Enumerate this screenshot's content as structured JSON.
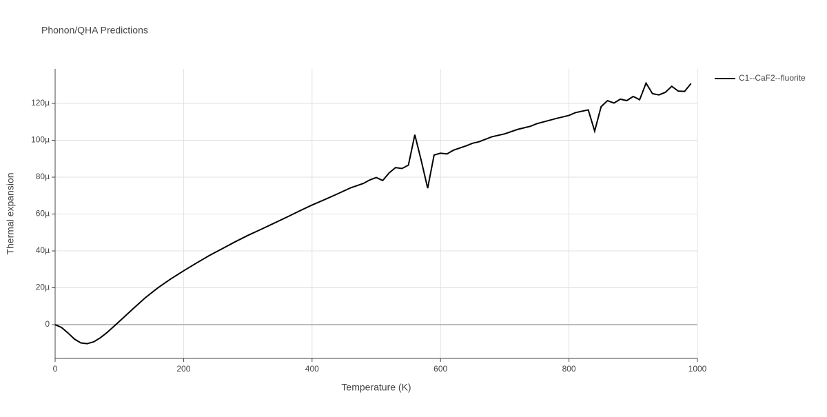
{
  "chart_data": {
    "type": "line",
    "title": "Phonon/QHA Predictions",
    "xlabel": "Temperature (K)",
    "ylabel": "Thermal expansion",
    "x": [
      0,
      10,
      20,
      30,
      40,
      50,
      60,
      70,
      80,
      90,
      100,
      120,
      140,
      160,
      180,
      200,
      220,
      240,
      260,
      280,
      300,
      320,
      340,
      360,
      380,
      400,
      420,
      440,
      460,
      480,
      490,
      500,
      510,
      520,
      530,
      540,
      550,
      560,
      570,
      580,
      590,
      600,
      610,
      620,
      640,
      650,
      660,
      680,
      700,
      720,
      740,
      750,
      780,
      800,
      810,
      830,
      840,
      850,
      860,
      870,
      880,
      890,
      900,
      910,
      920,
      930,
      940,
      950,
      960,
      970,
      980,
      990
    ],
    "series": [
      {
        "name": "C1--CaF2--fluorite",
        "color": "#000000",
        "values": [
          0,
          -1.5e-06,
          -4.5e-06,
          -7.8e-06,
          -9.9e-06,
          -1.03e-05,
          -9.3e-06,
          -7.2e-06,
          -4.5e-06,
          -1.4e-06,
          1.8e-06,
          8.2e-06,
          1.45e-05,
          2e-05,
          2.48e-05,
          2.92e-05,
          3.34e-05,
          3.75e-05,
          4.12e-05,
          4.49e-05,
          4.84e-05,
          5.16e-05,
          5.49e-05,
          5.82e-05,
          6.16e-05,
          6.49e-05,
          6.79e-05,
          7.1e-05,
          7.42e-05,
          7.66e-05,
          7.85e-05,
          7.98e-05,
          7.82e-05,
          8.23e-05,
          8.52e-05,
          8.47e-05,
          8.65e-05,
          0.000103,
          8.9e-05,
          7.4e-05,
          9.2e-05,
          9.3e-05,
          9.26e-05,
          9.46e-05,
          9.7e-05,
          9.84e-05,
          9.92e-05,
          0.0001019,
          0.0001035,
          0.0001059,
          0.0001076,
          0.000109,
          0.0001118,
          0.0001135,
          0.000115,
          0.0001165,
          0.000105,
          0.0001182,
          0.0001215,
          0.0001202,
          0.0001223,
          0.0001215,
          0.0001238,
          0.000122,
          0.000131,
          0.0001253,
          0.0001246,
          0.000126,
          0.0001293,
          0.0001267,
          0.0001265,
          0.0001308
        ]
      }
    ],
    "xlim": [
      0,
      1000
    ],
    "xticks": [
      0,
      200,
      400,
      600,
      800,
      1000
    ],
    "ylim": [
      -1.83e-05,
      0.0001387
    ],
    "yticks": [
      {
        "value": 0,
        "label": "0"
      },
      {
        "value": 2e-05,
        "label": "20µ"
      },
      {
        "value": 4e-05,
        "label": "40µ"
      },
      {
        "value": 6e-05,
        "label": "60µ"
      },
      {
        "value": 8e-05,
        "label": "80µ"
      },
      {
        "value": 0.0001,
        "label": "100µ"
      },
      {
        "value": 0.00012,
        "label": "120µ"
      }
    ],
    "grid": true,
    "legend": "top-right"
  }
}
